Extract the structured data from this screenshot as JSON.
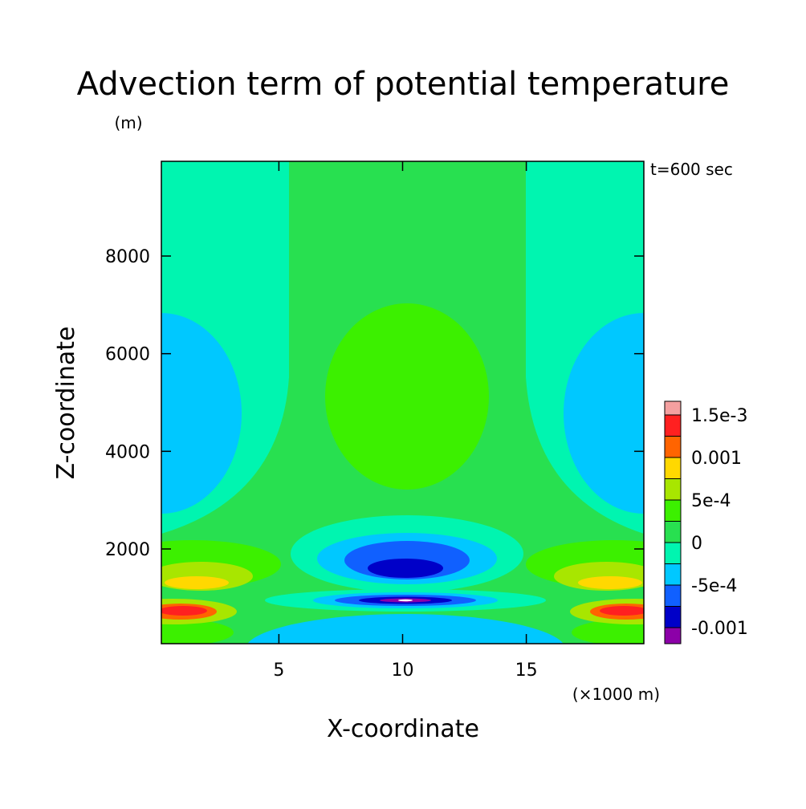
{
  "chart_data": {
    "type": "contour",
    "title": "Advection term of potential temperature",
    "y_unit": "(m)",
    "annotation": "t=600 sec",
    "x_label": "X-coordinate",
    "y_label": "Z-coordinate",
    "x_unit": "(×1000 m)",
    "xlim": [
      0.25,
      19.75
    ],
    "xticks": [
      5,
      10,
      15
    ],
    "ylim": [
      60,
      9940
    ],
    "yticks": [
      2000,
      4000,
      6000,
      8000
    ],
    "colorbar": {
      "levels": [
        {
          "value": 0.0015,
          "label": "1.5e-3"
        },
        0.001,
        {
          "value": 0.0005,
          "label": "5e-4"
        },
        0,
        {
          "value": -0.0005,
          "label": "-5e-4"
        },
        -0.001
      ],
      "colors": [
        "#f4a0a0",
        "#ff2020",
        "#ff6400",
        "#ffd800",
        "#a8e600",
        "#3cf000",
        "#28e050",
        "#00f5b0",
        "#00c8ff",
        "#1060ff",
        "#0000c8",
        "#8c00a8"
      ]
    }
  }
}
